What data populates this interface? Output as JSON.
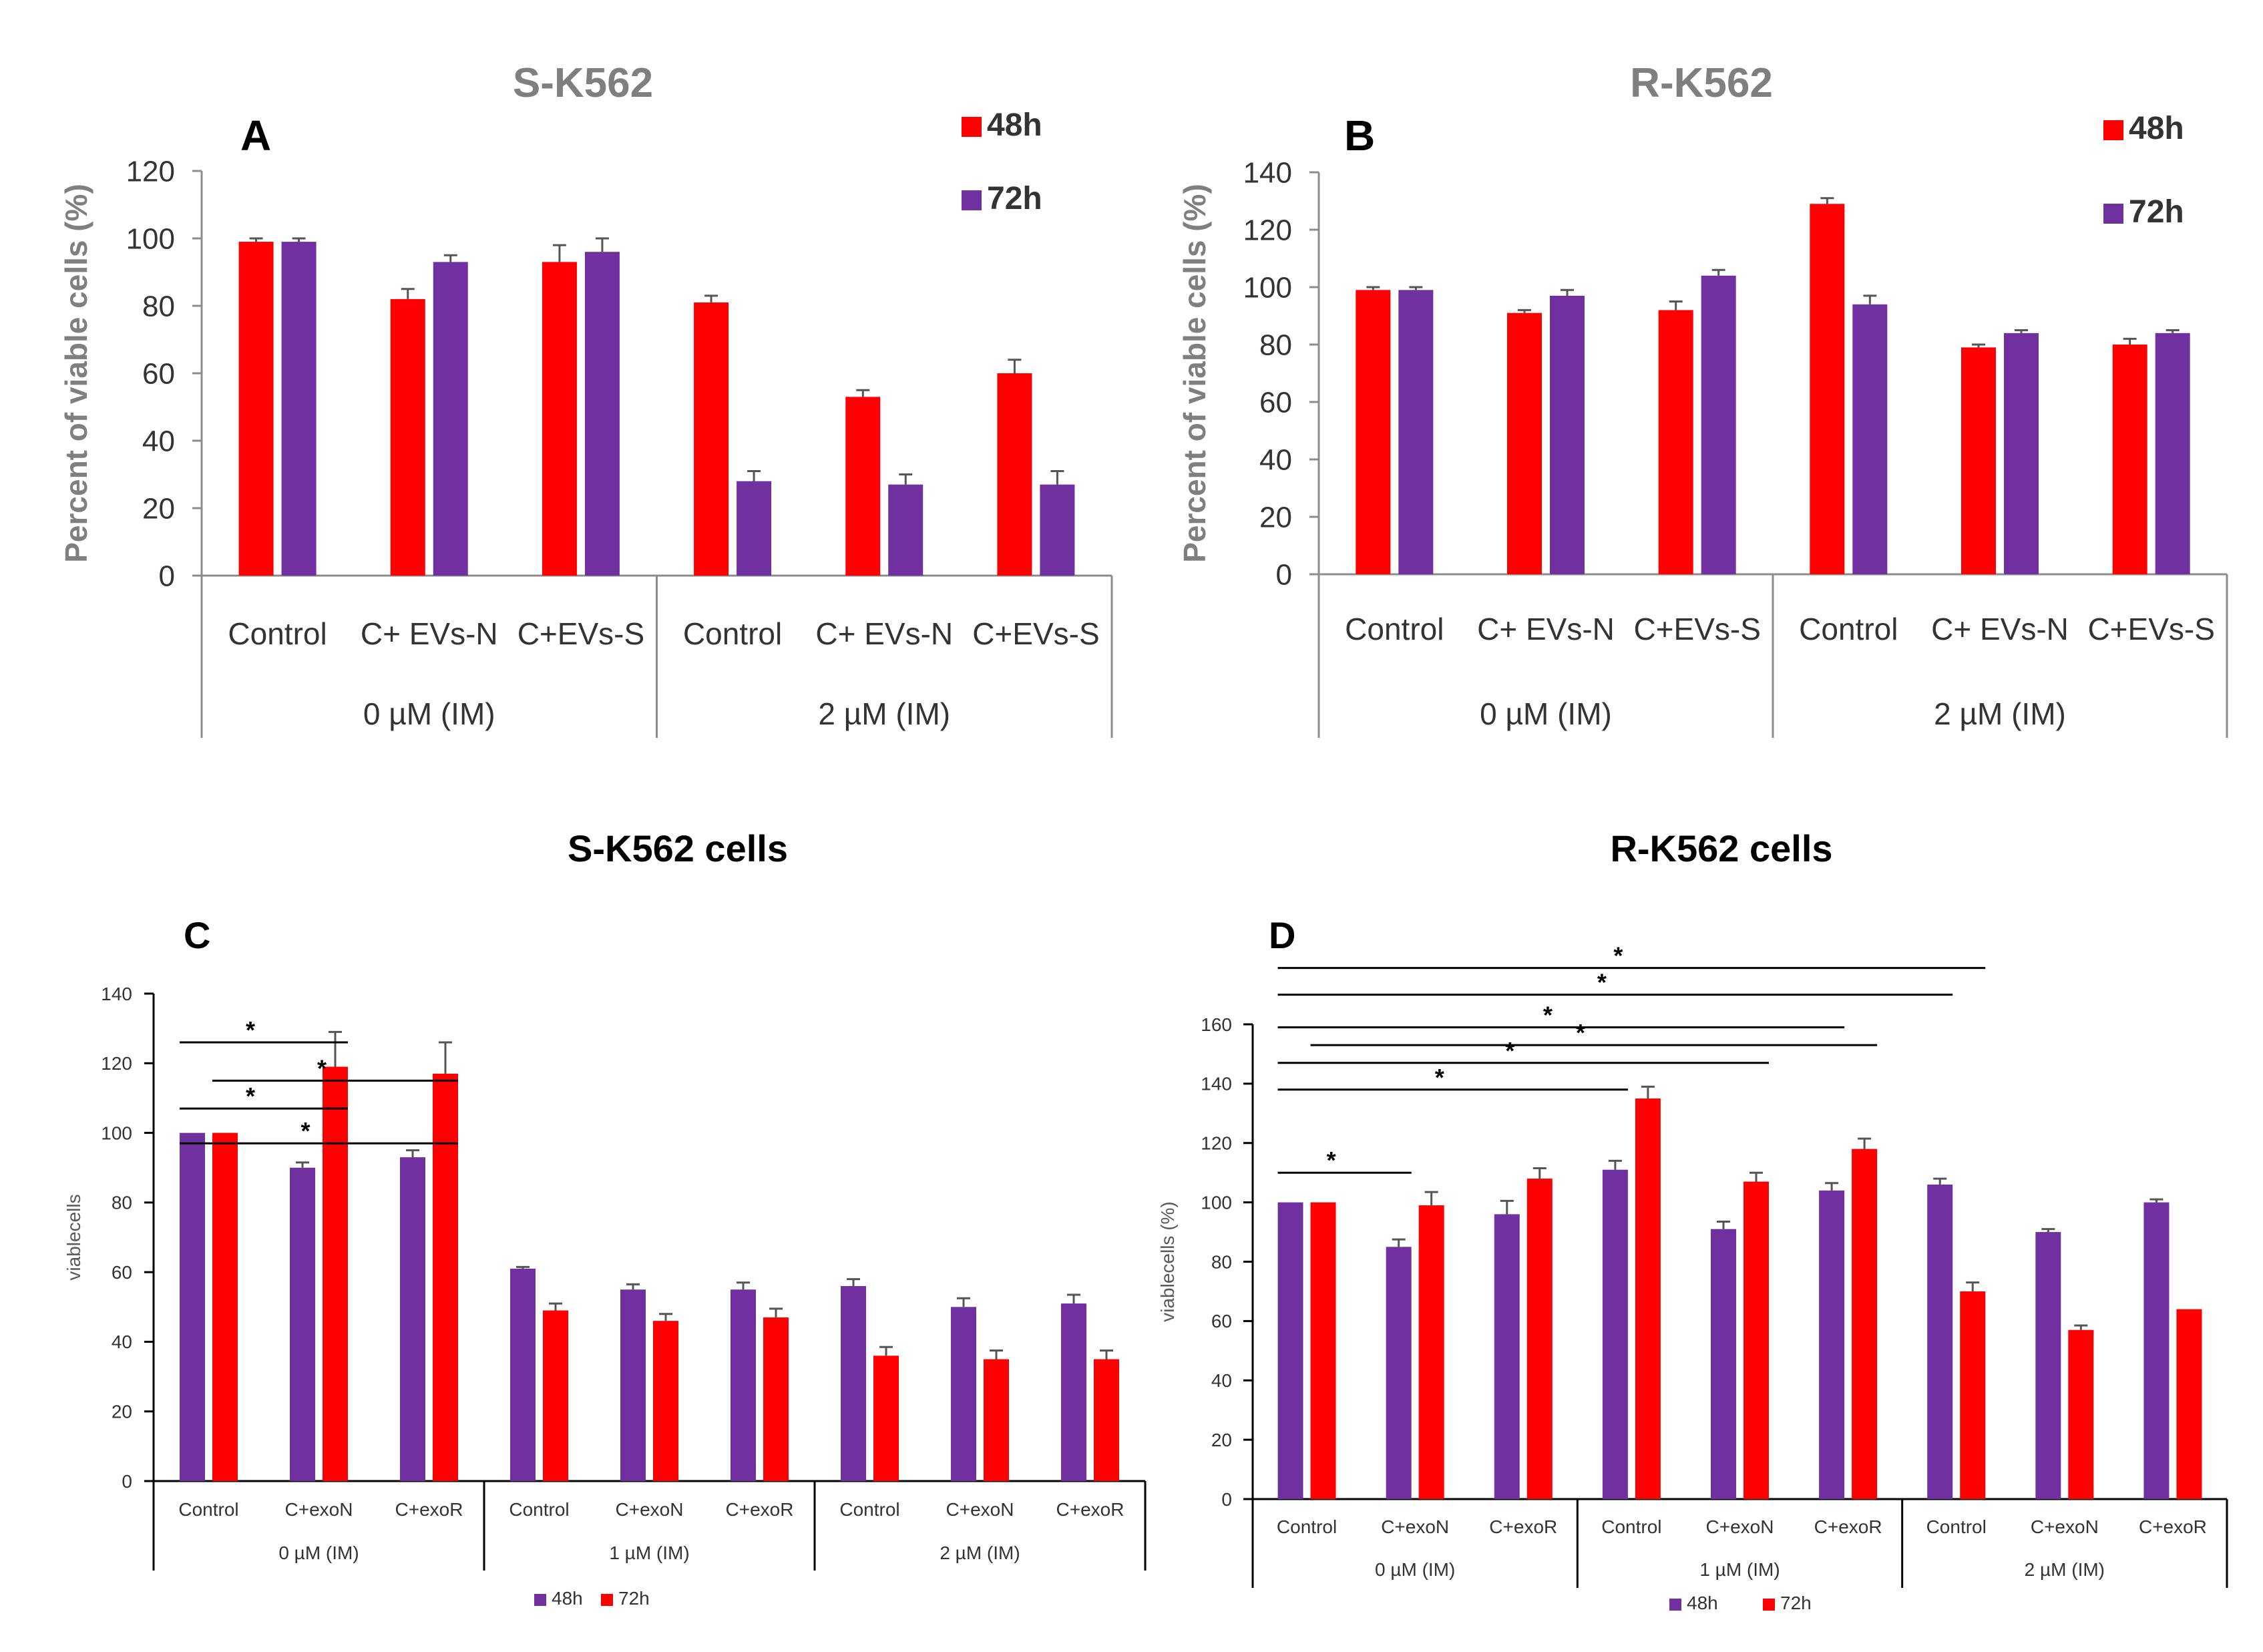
{
  "figure": {
    "colors": {
      "red": "#ff0000",
      "purple": "#7030a0",
      "axis": "#8c8c8c",
      "text": "#000000"
    },
    "error_bar_color": "#555555"
  },
  "chart_data": [
    {
      "panel": "A",
      "type": "bar",
      "title": "S-K562",
      "ylabel": "Percent of viable cells (%)",
      "ylim": [
        0,
        120
      ],
      "yticks": [
        0,
        20,
        40,
        60,
        80,
        100,
        120
      ],
      "legend_position": "top-right",
      "series_order": [
        "48h",
        "72h"
      ],
      "series": [
        {
          "name": "48h",
          "color": "#ff0000",
          "values": [
            99,
            82,
            93,
            81,
            53,
            60
          ],
          "errors": [
            1,
            3,
            5,
            2,
            2,
            4
          ]
        },
        {
          "name": "72h",
          "color": "#7030a0",
          "values": [
            99,
            93,
            96,
            28,
            27,
            27
          ],
          "errors": [
            1,
            2,
            4,
            3,
            3,
            4
          ]
        }
      ],
      "groups": [
        {
          "label": "0 µM (IM)",
          "categories": [
            "Control",
            "C+ EVs-N",
            "C+EVs-S"
          ]
        },
        {
          "label": "2 µM (IM)",
          "categories": [
            "Control",
            "C+ EVs-N",
            "C+EVs-S"
          ]
        }
      ]
    },
    {
      "panel": "B",
      "type": "bar",
      "title": "R-K562",
      "ylabel": "Percent of viable cells (%)",
      "ylim": [
        0,
        140
      ],
      "yticks": [
        0,
        20,
        40,
        60,
        80,
        100,
        120,
        140
      ],
      "legend_position": "top-right",
      "series_order": [
        "48h",
        "72h"
      ],
      "series": [
        {
          "name": "48h",
          "color": "#ff0000",
          "values": [
            99,
            91,
            92,
            129,
            79,
            80
          ],
          "errors": [
            1,
            1,
            3,
            2,
            1,
            2
          ]
        },
        {
          "name": "72h",
          "color": "#7030a0",
          "values": [
            99,
            97,
            104,
            94,
            84,
            84
          ],
          "errors": [
            1,
            2,
            2,
            3,
            1,
            1
          ]
        }
      ],
      "groups": [
        {
          "label": "0 µM (IM)",
          "categories": [
            "Control",
            "C+ EVs-N",
            "C+EVs-S"
          ]
        },
        {
          "label": "2 µM (IM)",
          "categories": [
            "Control",
            "C+ EVs-N",
            "C+EVs-S"
          ]
        }
      ]
    },
    {
      "panel": "C",
      "type": "bar",
      "title": "S-K562 cells",
      "ylabel": "viablecells",
      "ylim": [
        0,
        140
      ],
      "yticks": [
        0,
        20,
        40,
        60,
        80,
        100,
        120,
        140
      ],
      "legend_position": "bottom",
      "series_order": [
        "48h",
        "72h"
      ],
      "series": [
        {
          "name": "48h",
          "color": "#7030a0",
          "values": [
            100,
            90,
            93,
            61,
            55,
            55,
            56,
            50,
            51
          ],
          "errors": [
            0,
            1.5,
            2,
            0.5,
            1.5,
            2,
            2,
            2.5,
            2.5
          ]
        },
        {
          "name": "72h",
          "color": "#ff0000",
          "values": [
            100,
            119,
            117,
            49,
            46,
            47,
            36,
            35,
            35
          ],
          "errors": [
            0,
            10,
            9,
            2,
            2,
            2.5,
            2.5,
            2.5,
            2.5
          ]
        }
      ],
      "groups": [
        {
          "label": "0 µM (IM)",
          "categories": [
            "Control",
            "C+exoN",
            "C+exoR"
          ]
        },
        {
          "label": "1 µM (IM)",
          "categories": [
            "Control",
            "C+exoN",
            "C+exoR"
          ]
        },
        {
          "label": "2 µM (IM)",
          "categories": [
            "Control",
            "C+exoN",
            "C+exoR"
          ]
        }
      ],
      "significance": [
        {
          "label": "*",
          "from_bar": 0,
          "to_bar": 3,
          "level": 126
        },
        {
          "label": "*",
          "from_bar": 1,
          "to_bar": 5,
          "level": 115
        },
        {
          "label": "*",
          "from_bar": 0,
          "to_bar": 3,
          "level": 107
        },
        {
          "label": "*",
          "from_bar": 0,
          "to_bar": 5,
          "level": 97
        }
      ]
    },
    {
      "panel": "D",
      "type": "bar",
      "title": "R-K562 cells",
      "ylabel": "viablecells (%)",
      "ylim": [
        0,
        160
      ],
      "yticks": [
        0,
        20,
        40,
        60,
        80,
        100,
        120,
        140,
        160
      ],
      "legend_position": "bottom",
      "series_order": [
        "48h",
        "72h"
      ],
      "series": [
        {
          "name": "48h",
          "color": "#7030a0",
          "values": [
            100,
            85,
            96,
            111,
            91,
            104,
            106,
            90,
            100
          ],
          "errors": [
            0,
            2.5,
            4.5,
            3,
            2.5,
            2.5,
            2,
            1,
            1
          ]
        },
        {
          "name": "72h",
          "color": "#ff0000",
          "values": [
            100,
            99,
            108,
            135,
            107,
            118,
            70,
            57,
            64
          ],
          "errors": [
            0,
            4.5,
            3.5,
            4,
            3,
            3.5,
            3,
            1.5,
            0
          ]
        }
      ],
      "groups": [
        {
          "label": "0 µM (IM)",
          "categories": [
            "Control",
            "C+exoN",
            "C+exoR"
          ]
        },
        {
          "label": "1 µM (IM)",
          "categories": [
            "Control",
            "C+exoN",
            "C+exoR"
          ]
        },
        {
          "label": "2 µM (IM)",
          "categories": [
            "Control",
            "C+exoN",
            "C+exoR"
          ]
        }
      ],
      "significance": [
        {
          "label": "*",
          "from_bar": 0,
          "to_bar": 13,
          "level": 179
        },
        {
          "label": "*",
          "from_bar": 0,
          "to_bar": 12,
          "level": 170
        },
        {
          "label": "*",
          "from_bar": 0,
          "to_bar": 10,
          "level": 159
        },
        {
          "label": "*",
          "from_bar": 0.5,
          "to_bar": 11,
          "level": 153
        },
        {
          "label": "*",
          "from_bar": 0,
          "to_bar": 9,
          "level": 147
        },
        {
          "label": "*",
          "from_bar": 0,
          "to_bar": 6,
          "level": 138
        },
        {
          "label": "*",
          "from_bar": 0,
          "to_bar": 2,
          "level": 110
        }
      ]
    }
  ]
}
